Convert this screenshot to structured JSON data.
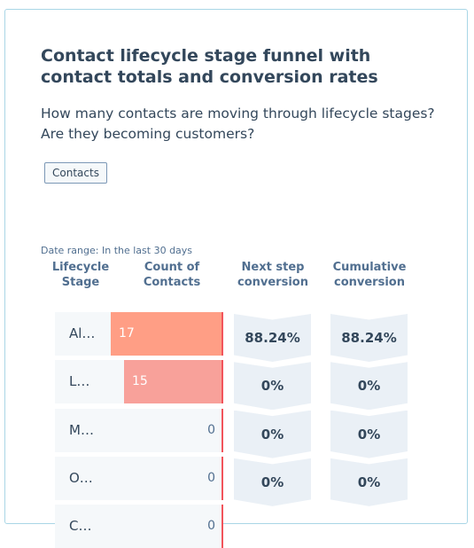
{
  "header": {
    "title": "Contact lifecycle stage funnel with contact totals and conversion rates",
    "subtitle": "How many contacts are moving through lifecycle stages? Are they becoming customers?"
  },
  "tag": "Contacts",
  "date_range": "Date range: In the last 30 days",
  "columns": [
    "Lifecycle Stage",
    "Count of Contacts",
    "Next step conversion",
    "Cumulative conversion"
  ],
  "rows": [
    {
      "stage": "Al…",
      "count": 17,
      "next": "88.24%",
      "cumulative": "88.24%"
    },
    {
      "stage": "L…",
      "count": 15,
      "next": "0%",
      "cumulative": "0%"
    },
    {
      "stage": "M…",
      "count": 0,
      "next": "0%",
      "cumulative": "0%"
    },
    {
      "stage": "O…",
      "count": 0,
      "next": "0%",
      "cumulative": "0%"
    },
    {
      "stage": "C…",
      "count": 0
    }
  ]
}
